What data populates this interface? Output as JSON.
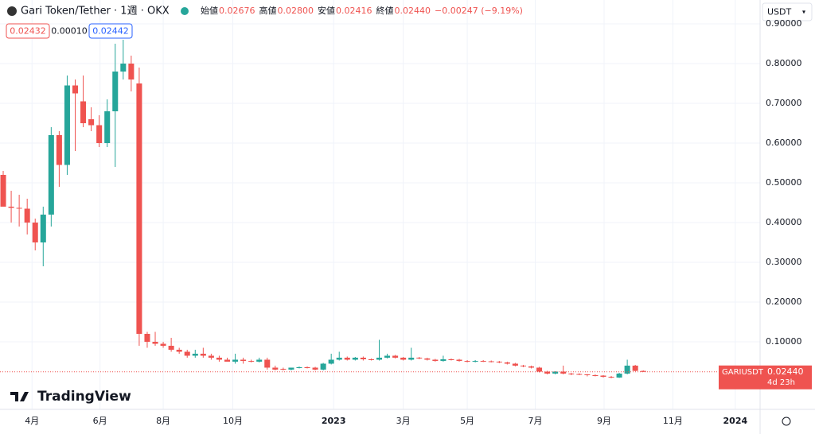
{
  "chart_data": {
    "type": "candlestick",
    "title": "Gari Token/Tether · 1週 · OKX",
    "legend_labels": [
      "始値",
      "高値",
      "安値",
      "終値"
    ],
    "legend_values": [
      "0.02676",
      "0.02800",
      "0.02416",
      "0.02440"
    ],
    "change": "−0.00247 (−9.19%)",
    "boxes": [
      "0.02432",
      "0.00010",
      "0.02442"
    ],
    "currency": "USDT",
    "symbol": "GARIUSDT",
    "last_price": "0.02440",
    "countdown": "4d 23h",
    "logo": "TradingView",
    "up_color": "#26a69a",
    "down_color": "#ef5350",
    "grid": true,
    "xlim": [
      -0.4,
      94.6
    ],
    "xticks": [
      {
        "value": 3.6,
        "label": "4月"
      },
      {
        "value": 12.1,
        "label": "6月"
      },
      {
        "value": 20.0,
        "label": "8月"
      },
      {
        "value": 28.7,
        "label": "10月"
      },
      {
        "value": 41.3,
        "label": "2023"
      },
      {
        "value": 50.0,
        "label": "3月"
      },
      {
        "value": 58.0,
        "label": "5月"
      },
      {
        "value": 66.5,
        "label": "7月"
      },
      {
        "value": 75.1,
        "label": "9月"
      },
      {
        "value": 83.7,
        "label": "11月"
      },
      {
        "value": 91.5,
        "label": "2024"
      }
    ],
    "ylim": [
      -0.07,
      0.96
    ],
    "yticks": [
      {
        "value": 0.1,
        "label": "0.10000"
      },
      {
        "value": 0.2,
        "label": "0.20000"
      },
      {
        "value": 0.3,
        "label": "0.30000"
      },
      {
        "value": 0.4,
        "label": "0.40000"
      },
      {
        "value": 0.5,
        "label": "0.50000"
      },
      {
        "value": 0.6,
        "label": "0.60000"
      },
      {
        "value": 0.7,
        "label": "0.70000"
      },
      {
        "value": 0.8,
        "label": "0.80000"
      },
      {
        "value": 0.9,
        "label": "0.90000"
      }
    ],
    "open": [
      0.52,
      0.44,
      0.437,
      0.435,
      0.4,
      0.35,
      0.42,
      0.62,
      0.545,
      0.745,
      0.705,
      0.66,
      0.645,
      0.6,
      0.68,
      0.78,
      0.8,
      0.75,
      0.12,
      0.1,
      0.095,
      0.09,
      0.08,
      0.075,
      0.065,
      0.07,
      0.065,
      0.06,
      0.055,
      0.05,
      0.055,
      0.052,
      0.05,
      0.055,
      0.035,
      0.032,
      0.03,
      0.035,
      0.036,
      0.035,
      0.03,
      0.045,
      0.055,
      0.06,
      0.055,
      0.06,
      0.056,
      0.055,
      0.06,
      0.065,
      0.06,
      0.055,
      0.06,
      0.058,
      0.055,
      0.052,
      0.056,
      0.055,
      0.052,
      0.05,
      0.052,
      0.051,
      0.05,
      0.048,
      0.045,
      0.04,
      0.038,
      0.035,
      0.025,
      0.02,
      0.025,
      0.02,
      0.019,
      0.018,
      0.016,
      0.015,
      0.012,
      0.01,
      0.02,
      0.04,
      0.02676
    ],
    "high": [
      0.53,
      0.48,
      0.47,
      0.46,
      0.41,
      0.44,
      0.64,
      0.63,
      0.77,
      0.76,
      0.77,
      0.69,
      0.67,
      0.71,
      0.85,
      0.86,
      0.82,
      0.79,
      0.125,
      0.125,
      0.1,
      0.11,
      0.085,
      0.08,
      0.08,
      0.085,
      0.07,
      0.065,
      0.06,
      0.07,
      0.06,
      0.055,
      0.06,
      0.06,
      0.04,
      0.035,
      0.034,
      0.038,
      0.038,
      0.037,
      0.047,
      0.07,
      0.075,
      0.063,
      0.062,
      0.063,
      0.058,
      0.105,
      0.07,
      0.067,
      0.062,
      0.085,
      0.062,
      0.06,
      0.057,
      0.065,
      0.058,
      0.057,
      0.054,
      0.054,
      0.054,
      0.053,
      0.052,
      0.05,
      0.047,
      0.042,
      0.04,
      0.037,
      0.027,
      0.026,
      0.04,
      0.022,
      0.021,
      0.019,
      0.018,
      0.016,
      0.014,
      0.022,
      0.055,
      0.042,
      0.028
    ],
    "low": [
      0.44,
      0.4,
      0.39,
      0.37,
      0.33,
      0.29,
      0.39,
      0.49,
      0.52,
      0.58,
      0.64,
      0.63,
      0.59,
      0.59,
      0.54,
      0.76,
      0.73,
      0.09,
      0.085,
      0.09,
      0.085,
      0.075,
      0.07,
      0.06,
      0.06,
      0.06,
      0.055,
      0.05,
      0.05,
      0.045,
      0.045,
      0.048,
      0.048,
      0.03,
      0.028,
      0.028,
      0.028,
      0.033,
      0.033,
      0.028,
      0.028,
      0.043,
      0.053,
      0.053,
      0.053,
      0.053,
      0.053,
      0.053,
      0.058,
      0.058,
      0.053,
      0.053,
      0.056,
      0.053,
      0.05,
      0.05,
      0.053,
      0.05,
      0.048,
      0.048,
      0.049,
      0.048,
      0.046,
      0.043,
      0.038,
      0.036,
      0.033,
      0.023,
      0.018,
      0.018,
      0.018,
      0.016,
      0.016,
      0.013,
      0.013,
      0.01,
      0.008,
      0.009,
      0.018,
      0.026,
      0.02416
    ],
    "close": [
      0.44,
      0.437,
      0.435,
      0.4,
      0.35,
      0.42,
      0.62,
      0.545,
      0.745,
      0.725,
      0.65,
      0.645,
      0.6,
      0.68,
      0.78,
      0.8,
      0.76,
      0.12,
      0.1,
      0.095,
      0.09,
      0.08,
      0.075,
      0.065,
      0.07,
      0.065,
      0.06,
      0.055,
      0.05,
      0.055,
      0.052,
      0.05,
      0.055,
      0.035,
      0.03,
      0.03,
      0.035,
      0.036,
      0.035,
      0.03,
      0.045,
      0.055,
      0.06,
      0.055,
      0.06,
      0.056,
      0.055,
      0.06,
      0.065,
      0.06,
      0.055,
      0.06,
      0.058,
      0.055,
      0.052,
      0.056,
      0.055,
      0.052,
      0.05,
      0.052,
      0.051,
      0.05,
      0.048,
      0.045,
      0.04,
      0.038,
      0.035,
      0.025,
      0.02,
      0.025,
      0.02,
      0.019,
      0.018,
      0.016,
      0.015,
      0.012,
      0.01,
      0.02,
      0.04,
      0.0268,
      0.0244
    ]
  }
}
